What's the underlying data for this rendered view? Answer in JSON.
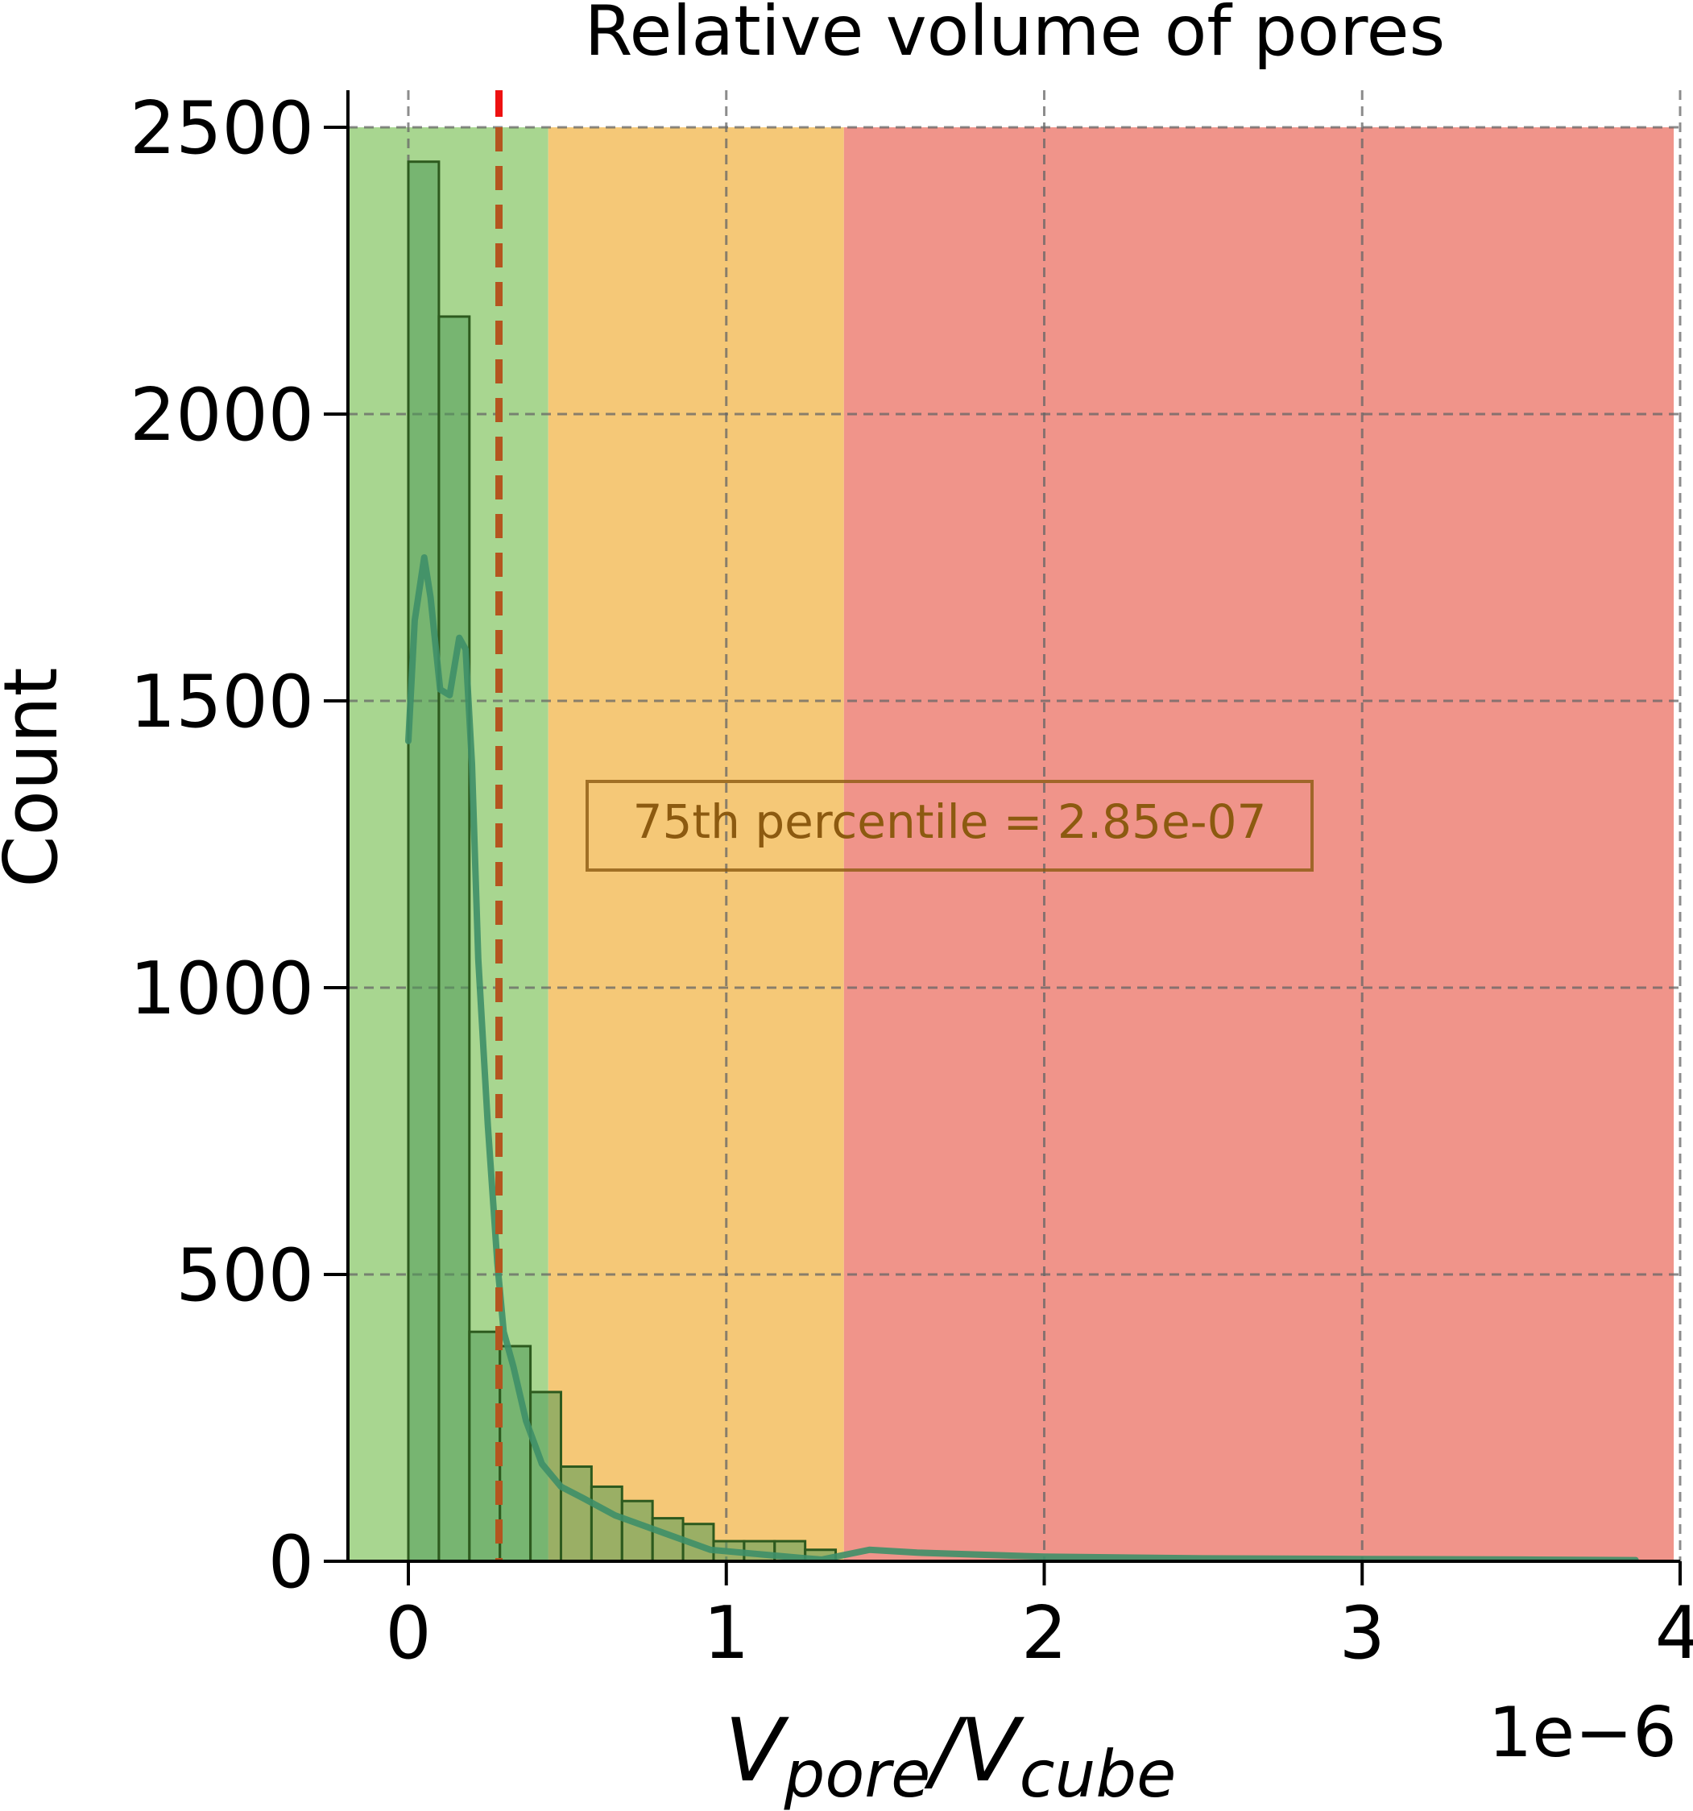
{
  "chart_data": {
    "type": "bar",
    "title": "Relative volume of pores",
    "ylabel": "Count",
    "xlabel": {
      "base": "V",
      "sub1": "pore",
      "sep": "/",
      "sub2": "cube"
    },
    "x_offset_label": "1e−6",
    "x_scale": 1e-06,
    "xlim": [
      -0.19,
      4.0
    ],
    "ylim": [
      0,
      2500
    ],
    "xticks": [
      0,
      1,
      2,
      3,
      4
    ],
    "xtick_labels": [
      "0",
      "1",
      "2",
      "3",
      "4"
    ],
    "yticks": [
      0,
      500,
      1000,
      1500,
      2000,
      2500
    ],
    "ytick_labels": [
      "0",
      "500",
      "1000",
      "1500",
      "2000",
      "2500"
    ],
    "grid": true,
    "bar_width": 0.096,
    "bins": [
      {
        "x": 0.0,
        "count": 2440
      },
      {
        "x": 0.096,
        "count": 2170
      },
      {
        "x": 0.192,
        "count": 400
      },
      {
        "x": 0.288,
        "count": 375
      },
      {
        "x": 0.384,
        "count": 295
      },
      {
        "x": 0.48,
        "count": 165
      },
      {
        "x": 0.576,
        "count": 130
      },
      {
        "x": 0.672,
        "count": 105
      },
      {
        "x": 0.768,
        "count": 75
      },
      {
        "x": 0.864,
        "count": 65
      },
      {
        "x": 0.96,
        "count": 35
      },
      {
        "x": 1.056,
        "count": 35
      },
      {
        "x": 1.152,
        "count": 35
      },
      {
        "x": 1.248,
        "count": 20
      }
    ],
    "kde": {
      "x": [
        0.0,
        0.02,
        0.05,
        0.07,
        0.1,
        0.13,
        0.16,
        0.18,
        0.2,
        0.22,
        0.25,
        0.28,
        0.3,
        0.33,
        0.37,
        0.42,
        0.48,
        0.55,
        0.65,
        0.75,
        0.85,
        0.95,
        1.05,
        1.15,
        1.25,
        1.3,
        1.45,
        1.6,
        2.0,
        2.5,
        3.0,
        3.5,
        3.86
      ],
      "y": [
        1430,
        1640,
        1750,
        1680,
        1520,
        1510,
        1610,
        1590,
        1390,
        1050,
        760,
        520,
        400,
        340,
        245,
        170,
        130,
        110,
        80,
        60,
        40,
        20,
        15,
        10,
        5,
        3,
        20,
        15,
        8,
        5,
        4,
        3,
        2
      ]
    },
    "regions": [
      {
        "from": -0.19,
        "to": 0.44,
        "color": "#a8d690"
      },
      {
        "from": 0.44,
        "to": 1.37,
        "color": "#f5c877"
      },
      {
        "from": 1.37,
        "to": 3.98,
        "color": "#f0948a"
      }
    ],
    "percentile_line": {
      "x": 0.285,
      "color": "#b4551f"
    },
    "annotation": "75th percentile = 2.85e-07",
    "colors": {
      "bar_fill": "#4f9a58",
      "bar_edge": "#2d5a1e",
      "kde_line": "#3e8f68",
      "grid": "#666666",
      "annotation_text": "#8c5a10",
      "annotation_box": "#8c5a10"
    }
  }
}
